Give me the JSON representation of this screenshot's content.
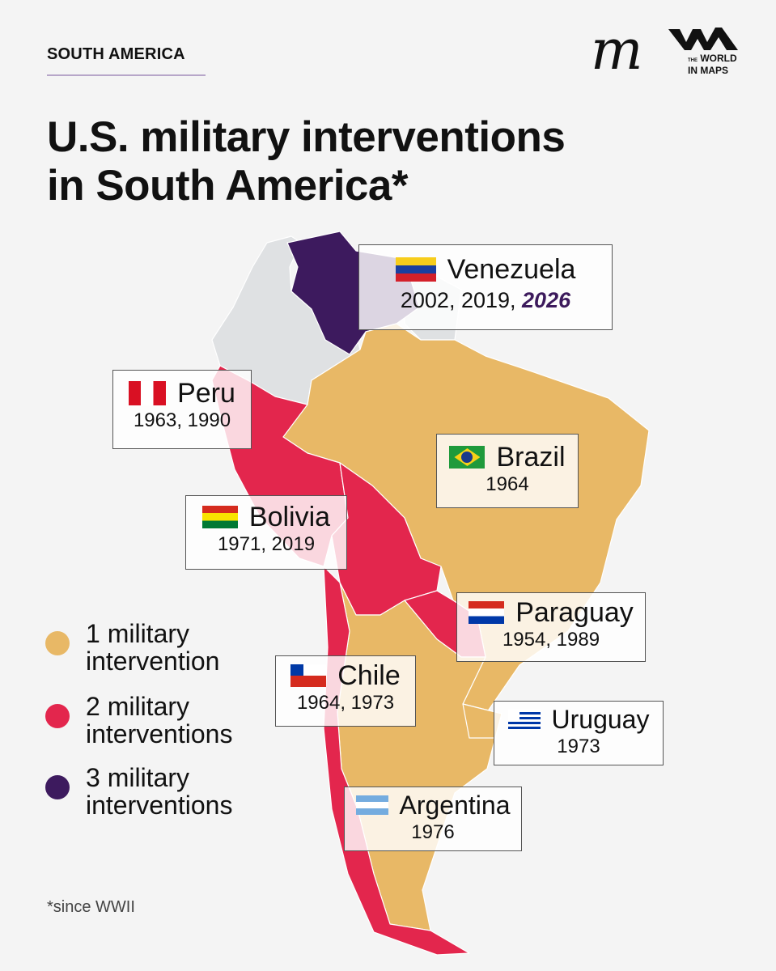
{
  "header": {
    "section": "SOUTH AMERICA",
    "title_line1": "U.S. military interventions",
    "title_line2": "in South America*",
    "logo_m": "m",
    "logo_small": "THE",
    "logo_line1": "WORLD",
    "logo_line2": "IN MAPS"
  },
  "colors": {
    "one": "#e8b866",
    "two": "#e3264d",
    "three": "#3d1a5e",
    "none": "#dfe1e3"
  },
  "countries": {
    "venezuela": {
      "name": "Venezuela",
      "years": "2002, 2019,",
      "highlight_year": "2026",
      "count": 3,
      "flag": "venezuela-flag"
    },
    "peru": {
      "name": "Peru",
      "years": "1963, 1990",
      "count": 2,
      "flag": "peru-flag"
    },
    "brazil": {
      "name": "Brazil",
      "years": "1964",
      "count": 1,
      "flag": "brazil-flag"
    },
    "bolivia": {
      "name": "Bolivia",
      "years": "1971, 2019",
      "count": 2,
      "flag": "bolivia-flag"
    },
    "paraguay": {
      "name": "Paraguay",
      "years": "1954, 1989",
      "count": 2,
      "flag": "paraguay-flag"
    },
    "chile": {
      "name": "Chile",
      "years": "1964, 1973",
      "count": 2,
      "flag": "chile-flag"
    },
    "uruguay": {
      "name": "Uruguay",
      "years": "1973",
      "count": 1,
      "flag": "uruguay-flag"
    },
    "argentina": {
      "name": "Argentina",
      "years": "1976",
      "count": 1,
      "flag": "argentina-flag"
    }
  },
  "legend": [
    {
      "line1": "1 military",
      "line2": "intervention"
    },
    {
      "line1": "2 military",
      "line2": "interventions"
    },
    {
      "line1": "3 military",
      "line2": "interventions"
    }
  ],
  "footnote": "*since WWII"
}
